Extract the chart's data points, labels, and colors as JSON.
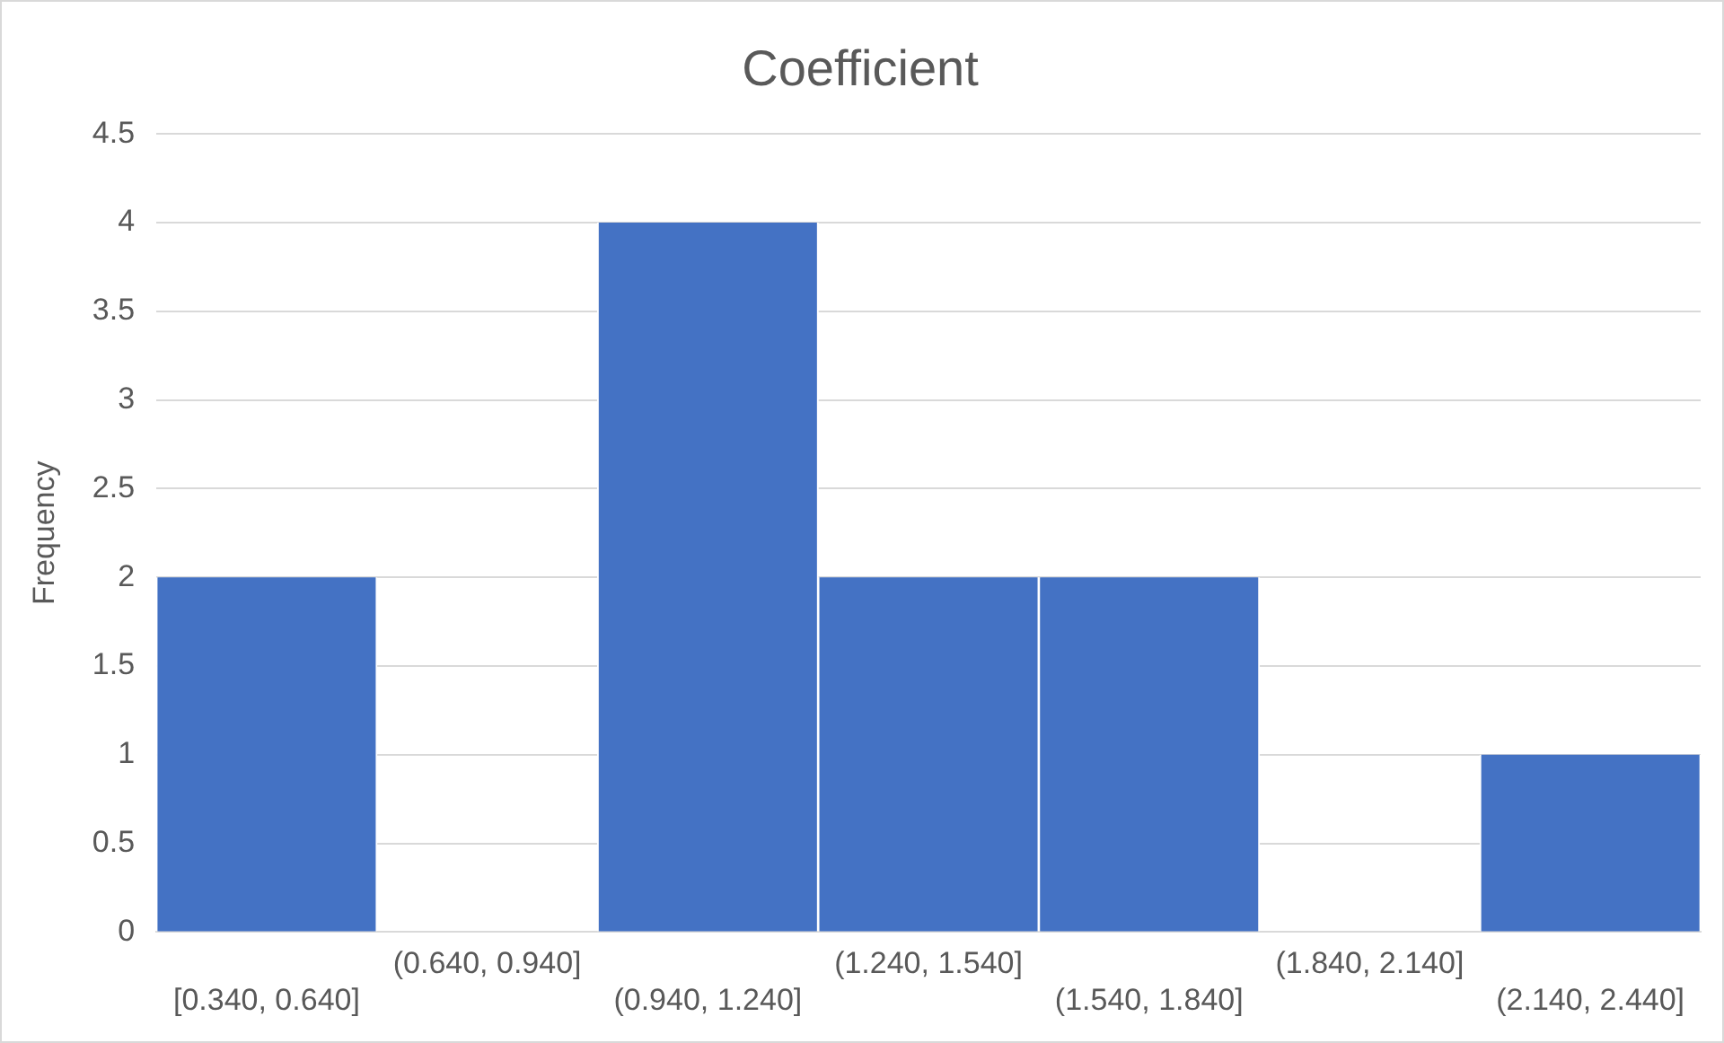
{
  "chart_data": {
    "type": "bar",
    "title": "Coefficient",
    "ylabel": "Frequency",
    "categories": [
      "[0.340, 0.640]",
      "(0.640, 0.940]",
      "(0.940, 1.240]",
      "(1.240, 1.540]",
      "(1.540, 1.840]",
      "(1.840, 2.140]",
      "(2.140, 2.440]"
    ],
    "values": [
      2,
      0,
      4,
      2,
      2,
      0,
      1
    ],
    "color": "#4472c4",
    "ylim": [
      0,
      4.5
    ],
    "yticks": [
      0,
      0.5,
      1,
      1.5,
      2,
      2.5,
      3,
      3.5,
      4,
      4.5
    ],
    "grid": "y"
  }
}
